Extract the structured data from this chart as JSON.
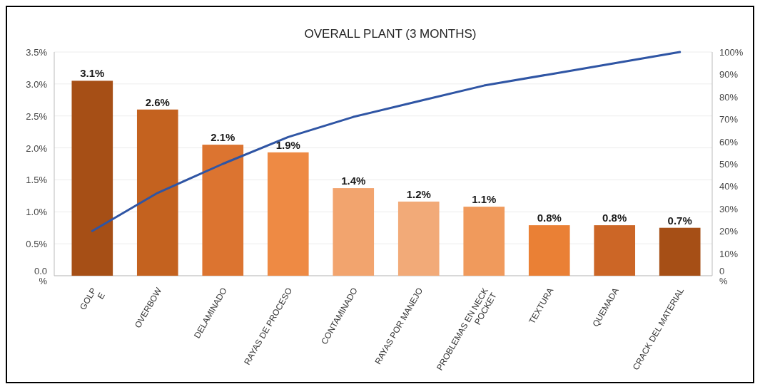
{
  "chart_data": {
    "type": "bar",
    "title": "OVERALL PLANT  (3 MONTHS)",
    "categories": [
      "GOLP\nE",
      "OVERBOW",
      "DELAMINADO",
      "RAYAS DE PROCESO",
      "CONTAMINADO",
      "RAYAS POR MANEJO",
      "PROBLEMAS EN NECK\nPOCKET",
      "TEXTURA",
      "QUEMADA",
      "CRACK DEL MATERIAL"
    ],
    "series": [
      {
        "colors": [
          "#a64f16",
          "#c4621f",
          "#dc7430",
          "#ee8a44",
          "#f2a46e",
          "#f2aa78",
          "#f09a5c",
          "#ea8035",
          "#cc6626",
          "#a64f16"
        ],
        "values": [
          3.05,
          2.6,
          2.05,
          1.93,
          1.37,
          1.16,
          1.08,
          0.79,
          0.79,
          0.75
        ],
        "value_labels": [
          "3.1%",
          "2.6%",
          "2.1%",
          "1.9%",
          "1.4%",
          "1.2%",
          "1.1%",
          "0.8%",
          "0.8%",
          "0.7%"
        ]
      },
      {
        "type": "line",
        "axis": "y2",
        "color": "#2f55a4",
        "values": [
          20,
          37,
          50,
          62,
          71,
          78,
          85,
          90,
          95,
          100
        ]
      }
    ],
    "ylim": [
      0,
      3.5
    ],
    "yticks": [
      {
        "value": 0,
        "label": "0.0\n%"
      },
      {
        "value": 0.5,
        "label": "0.5%"
      },
      {
        "value": 1,
        "label": "1.0%"
      },
      {
        "value": 1.5,
        "label": "1.5%"
      },
      {
        "value": 2,
        "label": "2.0%"
      },
      {
        "value": 2.5,
        "label": "2.5%"
      },
      {
        "value": 3,
        "label": "3.0%"
      },
      {
        "value": 3.5,
        "label": "3.5%"
      }
    ],
    "y2lim": [
      0,
      100
    ],
    "y2ticks": [
      {
        "value": 0,
        "label": "0\n%"
      },
      {
        "value": 10,
        "label": "10%"
      },
      {
        "value": 20,
        "label": "20%"
      },
      {
        "value": 30,
        "label": "30%"
      },
      {
        "value": 40,
        "label": "40%"
      },
      {
        "value": 50,
        "label": "50%"
      },
      {
        "value": 60,
        "label": "60%"
      },
      {
        "value": 70,
        "label": "70%"
      },
      {
        "value": 80,
        "label": "80%"
      },
      {
        "value": 90,
        "label": "90%"
      },
      {
        "value": 100,
        "label": "100%"
      }
    ],
    "grid": "y",
    "marker": "none",
    "line_style": "solid"
  }
}
